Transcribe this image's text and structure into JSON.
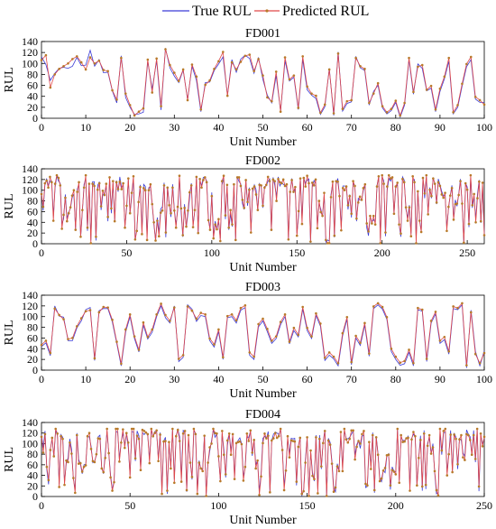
{
  "legend": {
    "position": "top-center",
    "entries": [
      "True RUL",
      "Predicted RUL"
    ]
  },
  "colors": {
    "true": "#3b3bd6",
    "pred": "#e04848",
    "marker": "#b87a2a"
  },
  "chart_data": [
    {
      "type": "line",
      "title": "FD001",
      "xlabel": "Unit Number",
      "ylabel": "RUL",
      "xlim": [
        0,
        100
      ],
      "ylim": [
        0,
        140
      ],
      "xticks": [
        0,
        10,
        20,
        30,
        40,
        50,
        60,
        70,
        80,
        90,
        100
      ],
      "yticks": [
        0,
        20,
        40,
        60,
        80,
        100,
        120,
        140
      ],
      "series": [
        {
          "name": "True RUL",
          "values": [
            112,
            98,
            69,
            82,
            91,
            93,
            91,
            95,
            111,
            96,
            97,
            124,
            95,
            107,
            83,
            84,
            50,
            28,
            114,
            38,
            20,
            7,
            8,
            11,
            104,
            53,
            105,
            15,
            128,
            92,
            77,
            65,
            88,
            34,
            95,
            69,
            12,
            65,
            66,
            87,
            99,
            112,
            42,
            107,
            84,
            108,
            115,
            109,
            82,
            111,
            71,
            42,
            28,
            78,
            13,
            105,
            68,
            75,
            16,
            107,
            52,
            42,
            36,
            7,
            21,
            91,
            5,
            121,
            13,
            27,
            30,
            113,
            92,
            87,
            24,
            49,
            60,
            19,
            8,
            14,
            29,
            2,
            24,
            107,
            44,
            99,
            91,
            50,
            55,
            12,
            49,
            72,
            104,
            8,
            20,
            59,
            94,
            107,
            35,
            29,
            29
          ]
        },
        {
          "name": "Predicted RUL",
          "values": [
            106,
            115,
            56,
            80,
            90,
            95,
            100,
            108,
            113,
            102,
            89,
            111,
            100,
            105,
            88,
            86,
            51,
            34,
            110,
            45,
            24,
            5,
            12,
            18,
            107,
            47,
            109,
            22,
            126,
            97,
            83,
            68,
            89,
            33,
            98,
            76,
            16,
            61,
            69,
            90,
            104,
            121,
            41,
            102,
            89,
            103,
            114,
            116,
            86,
            108,
            78,
            38,
            31,
            85,
            12,
            111,
            71,
            78,
            19,
            113,
            58,
            45,
            41,
            10,
            25,
            89,
            9,
            118,
            17,
            31,
            33,
            110,
            95,
            90,
            28,
            45,
            64,
            22,
            11,
            17,
            32,
            5,
            28,
            110,
            48,
            94,
            97,
            52,
            59,
            16,
            54,
            76,
            110,
            11,
            24,
            63,
            99,
            112,
            39,
            33,
            25
          ]
        }
      ]
    },
    {
      "type": "line",
      "title": "FD002",
      "xlabel": "Unit Number",
      "ylabel": "RUL",
      "xlim": [
        0,
        260
      ],
      "ylim": [
        0,
        140
      ],
      "xticks": [
        0,
        50,
        100,
        150,
        200,
        250
      ],
      "yticks": [
        0,
        20,
        40,
        60,
        80,
        100,
        120,
        140
      ]
    },
    {
      "type": "line",
      "title": "FD003",
      "xlabel": "Unit Number",
      "ylabel": "RUL",
      "xlim": [
        0,
        100
      ],
      "ylim": [
        0,
        140
      ],
      "xticks": [
        0,
        10,
        20,
        30,
        40,
        50,
        60,
        70,
        80,
        90,
        100
      ],
      "yticks": [
        0,
        20,
        40,
        60,
        80,
        100,
        120,
        140
      ],
      "series": [
        {
          "name": "True RUL",
          "values": [
            44,
            51,
            27,
            120,
            101,
            99,
            55,
            55,
            79,
            92,
            113,
            117,
            18,
            111,
            115,
            115,
            90,
            50,
            8,
            71,
            100,
            59,
            34,
            84,
            58,
            71,
            100,
            120,
            98,
            88,
            120,
            16,
            24,
            122,
            114,
            91,
            102,
            100,
            55,
            43,
            72,
            20,
            98,
            100,
            88,
            112,
            117,
            28,
            20,
            81,
            92,
            72,
            50,
            59,
            85,
            100,
            49,
            74,
            62,
            114,
            74,
            59,
            102,
            82,
            18,
            28,
            21,
            8,
            64,
            95,
            10,
            60,
            46,
            84,
            26,
            115,
            122,
            114,
            95,
            35,
            20,
            9,
            12,
            33,
            8,
            113,
            110,
            16,
            88,
            105,
            50,
            57,
            30,
            115,
            113,
            122,
            4,
            112,
            35,
            8,
            36
          ]
        },
        {
          "name": "Predicted RUL",
          "values": [
            47,
            55,
            32,
            115,
            103,
            95,
            58,
            60,
            82,
            97,
            110,
            112,
            22,
            108,
            118,
            117,
            94,
            53,
            12,
            76,
            104,
            63,
            38,
            89,
            62,
            76,
            104,
            124,
            103,
            92,
            117,
            21,
            28,
            119,
            111,
            96,
            107,
            104,
            59,
            48,
            76,
            24,
            101,
            104,
            93,
            116,
            121,
            33,
            25,
            86,
            96,
            77,
            55,
            63,
            90,
            104,
            53,
            79,
            66,
            118,
            79,
            63,
            106,
            87,
            23,
            33,
            25,
            13,
            69,
            99,
            15,
            64,
            51,
            88,
            31,
            119,
            125,
            118,
            99,
            40,
            25,
            14,
            17,
            38,
            13,
            116,
            113,
            21,
            92,
            109,
            55,
            62,
            35,
            119,
            116,
            125,
            9,
            108,
            30,
            13,
            32
          ]
        }
      ]
    },
    {
      "type": "line",
      "title": "FD004",
      "xlabel": "Unit Number",
      "ylabel": "RUL",
      "xlim": [
        0,
        250
      ],
      "ylim": [
        0,
        140
      ],
      "xticks": [
        0,
        50,
        100,
        150,
        200,
        250
      ],
      "yticks": [
        0,
        20,
        40,
        60,
        80,
        100,
        120,
        140
      ]
    }
  ]
}
